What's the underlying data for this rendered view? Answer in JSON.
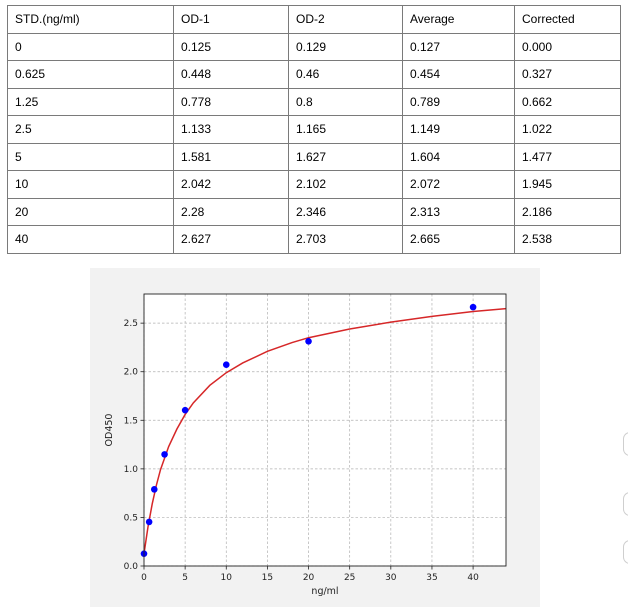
{
  "table": {
    "headers": [
      "STD.(ng/ml)",
      "OD-1",
      "OD-2",
      "Average",
      "Corrected"
    ],
    "rows": [
      [
        "0",
        "0.125",
        "0.129",
        "0.127",
        "0.000"
      ],
      [
        "0.625",
        "0.448",
        "0.46",
        "0.454",
        "0.327"
      ],
      [
        "1.25",
        "0.778",
        "0.8",
        "0.789",
        "0.662"
      ],
      [
        "2.5",
        "1.133",
        "1.165",
        "1.149",
        "1.022"
      ],
      [
        "5",
        "1.581",
        "1.627",
        "1.604",
        "1.477"
      ],
      [
        "10",
        "2.042",
        "2.102",
        "2.072",
        "1.945"
      ],
      [
        "20",
        "2.28",
        "2.346",
        "2.313",
        "2.186"
      ],
      [
        "40",
        "2.627",
        "2.703",
        "2.665",
        "2.538"
      ]
    ]
  },
  "chart_data": {
    "type": "scatter",
    "title": "",
    "xlabel": "ng/ml",
    "ylabel": "OD450",
    "xlim": [
      0,
      44
    ],
    "ylim": [
      0,
      2.8
    ],
    "xticks": [
      "0",
      "5",
      "10",
      "15",
      "20",
      "25",
      "30",
      "35",
      "40"
    ],
    "yticks": [
      "0.0",
      "0.5",
      "1.0",
      "1.5",
      "2.0",
      "2.5"
    ],
    "grid": true,
    "points": {
      "x": [
        0,
        0.625,
        1.25,
        2.5,
        5,
        10,
        20,
        40
      ],
      "y": [
        0.127,
        0.454,
        0.789,
        1.149,
        1.604,
        2.072,
        2.313,
        2.665
      ]
    },
    "fit_curve": {
      "x": [
        0,
        0.5,
        1,
        1.5,
        2,
        3,
        4,
        5,
        6,
        8,
        10,
        12,
        15,
        18,
        20,
        25,
        30,
        35,
        40,
        44
      ],
      "y": [
        0.127,
        0.41,
        0.64,
        0.83,
        0.99,
        1.23,
        1.41,
        1.56,
        1.68,
        1.86,
        1.99,
        2.09,
        2.21,
        2.3,
        2.35,
        2.44,
        2.51,
        2.57,
        2.62,
        2.65
      ]
    },
    "colors": {
      "points": "#0000ff",
      "curve": "#d62728",
      "panel": "#f2f2f2"
    }
  }
}
